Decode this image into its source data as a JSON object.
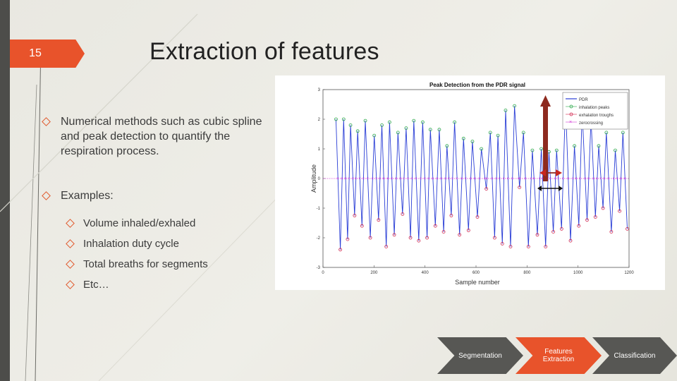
{
  "slide": {
    "number": "15",
    "title": "Extraction of features"
  },
  "bullets": [
    {
      "text": "Numerical methods such as cubic spline and peak detection to quantify the respiration process."
    },
    {
      "text": "Examples:"
    }
  ],
  "sub_bullets": [
    {
      "text": "Volume inhaled/exhaled"
    },
    {
      "text": "Inhalation duty cycle"
    },
    {
      "text": "Total breaths for segments"
    },
    {
      "text": "Etc…"
    }
  ],
  "flow": {
    "step1": "Segmentation",
    "step2": "Features Extraction",
    "step3": "Classification",
    "active_color": "#e8532b",
    "inactive_color": "#575754"
  },
  "chart_data": {
    "type": "line",
    "title": "Peak Detection from the PDR signal",
    "xlabel": "Sample number",
    "ylabel": "Amplitude",
    "xlim": [
      0,
      1200
    ],
    "ylim": [
      -3,
      3
    ],
    "x_ticks": [
      "0",
      "200",
      "400",
      "600",
      "800",
      "1000",
      "1200"
    ],
    "y_ticks": [
      "3",
      "2",
      "1",
      "0",
      "-1",
      "-2",
      "-3"
    ],
    "legend": [
      "PDR",
      "inhalation peaks",
      "exhalation troughs",
      "zerocrossing"
    ],
    "legend_position": "top-right",
    "series_colors": {
      "PDR": "#2a3ed6",
      "inhalation peaks": "#2ba84a",
      "exhalation troughs": "#d2274f",
      "zerocrossing": "#d33bd6"
    },
    "cycle_centers": [
      55,
      85,
      112,
      140,
      170,
      205,
      235,
      265,
      298,
      330,
      360,
      395,
      425,
      460,
      490,
      520,
      555,
      590,
      625,
      660,
      690,
      720,
      755,
      790,
      825,
      860,
      890,
      920,
      955,
      990,
      1020,
      1055,
      1085,
      1115,
      1150,
      1180
    ],
    "peaks": [
      2.0,
      2.0,
      1.8,
      1.6,
      1.95,
      1.45,
      1.8,
      1.9,
      1.55,
      1.7,
      1.95,
      1.9,
      1.65,
      1.65,
      1.1,
      1.9,
      1.35,
      1.25,
      1.0,
      1.55,
      1.45,
      2.3,
      2.45,
      1.55,
      0.95,
      1.0,
      0.9,
      0.95,
      2.55,
      1.1,
      2.3,
      2.0,
      1.1,
      1.55,
      0.95,
      1.55
    ],
    "troughs": [
      -2.4,
      -2.05,
      -1.25,
      -1.6,
      -2.0,
      -1.4,
      -2.3,
      -1.9,
      -1.2,
      -2.0,
      -2.1,
      -2.0,
      -1.6,
      -1.8,
      -1.25,
      -1.9,
      -1.75,
      -1.3,
      -0.35,
      -2.0,
      -2.2,
      -2.3,
      -0.3,
      -2.3,
      -1.9,
      -2.3,
      -1.8,
      -1.7,
      -2.1,
      -1.6,
      -1.4,
      -1.3,
      -1.0,
      -1.8,
      -1.1,
      -1.7
    ]
  }
}
